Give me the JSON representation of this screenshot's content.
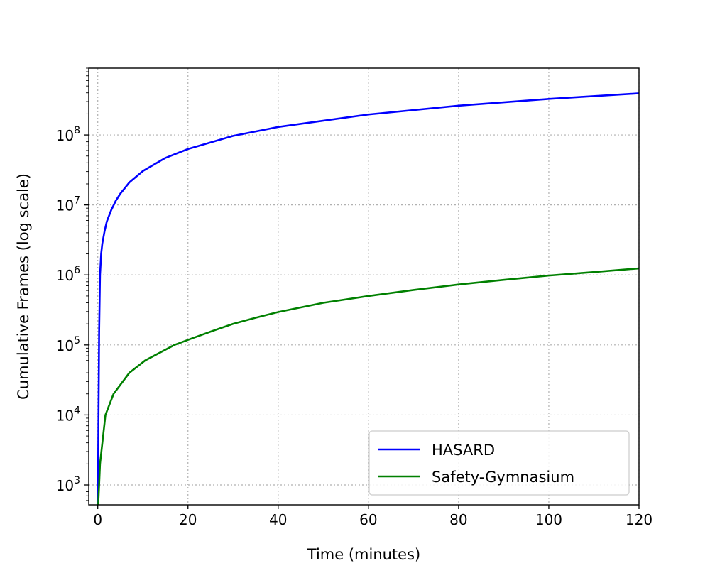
{
  "chart_data": {
    "type": "line",
    "xlabel": "Time (minutes)",
    "ylabel": "Cumulative Frames (log scale)",
    "xlim": [
      -2,
      120
    ],
    "ylim": [
      520,
      900000000
    ],
    "y_scale": "log",
    "grid": true,
    "legend_position": "lower-right",
    "x_ticks": [
      0,
      20,
      40,
      60,
      80,
      100,
      120
    ],
    "y_ticks": [
      {
        "value": 1000,
        "base": "10",
        "exp": "3"
      },
      {
        "value": 10000,
        "base": "10",
        "exp": "4"
      },
      {
        "value": 100000,
        "base": "10",
        "exp": "5"
      },
      {
        "value": 1000000,
        "base": "10",
        "exp": "6"
      },
      {
        "value": 10000000,
        "base": "10",
        "exp": "7"
      },
      {
        "value": 100000000,
        "base": "10",
        "exp": "8"
      }
    ],
    "series": [
      {
        "name": "HASARD",
        "color": "#0000ff",
        "x": [
          0.05,
          0.1,
          0.2,
          0.3,
          0.5,
          0.75,
          1,
          1.5,
          2,
          3,
          4,
          5,
          7,
          10,
          15,
          20,
          30,
          40,
          60,
          80,
          100,
          120
        ],
        "y": [
          600,
          3000,
          20000,
          150000,
          1000000,
          2000000,
          2800000,
          4200000,
          5800000,
          8500000,
          11500000,
          14500000,
          21000000,
          30500000,
          47000000,
          63000000,
          97000000,
          130000000,
          196000000,
          262000000,
          327000000,
          393000000
        ]
      },
      {
        "name": "Safety-Gymnasium",
        "color": "#008000",
        "x": [
          0.1,
          0.3,
          0.5,
          1.7,
          3.5,
          7,
          10.5,
          17,
          21,
          26,
          30,
          35,
          40,
          50,
          60,
          70,
          80,
          90,
          100,
          110,
          120
        ],
        "y": [
          520,
          1000,
          2000,
          10000,
          20000,
          40000,
          60000,
          100000,
          125000,
          163000,
          200000,
          245000,
          295000,
          400000,
          500000,
          610000,
          730000,
          850000,
          980000,
          1100000,
          1240000
        ]
      }
    ]
  }
}
